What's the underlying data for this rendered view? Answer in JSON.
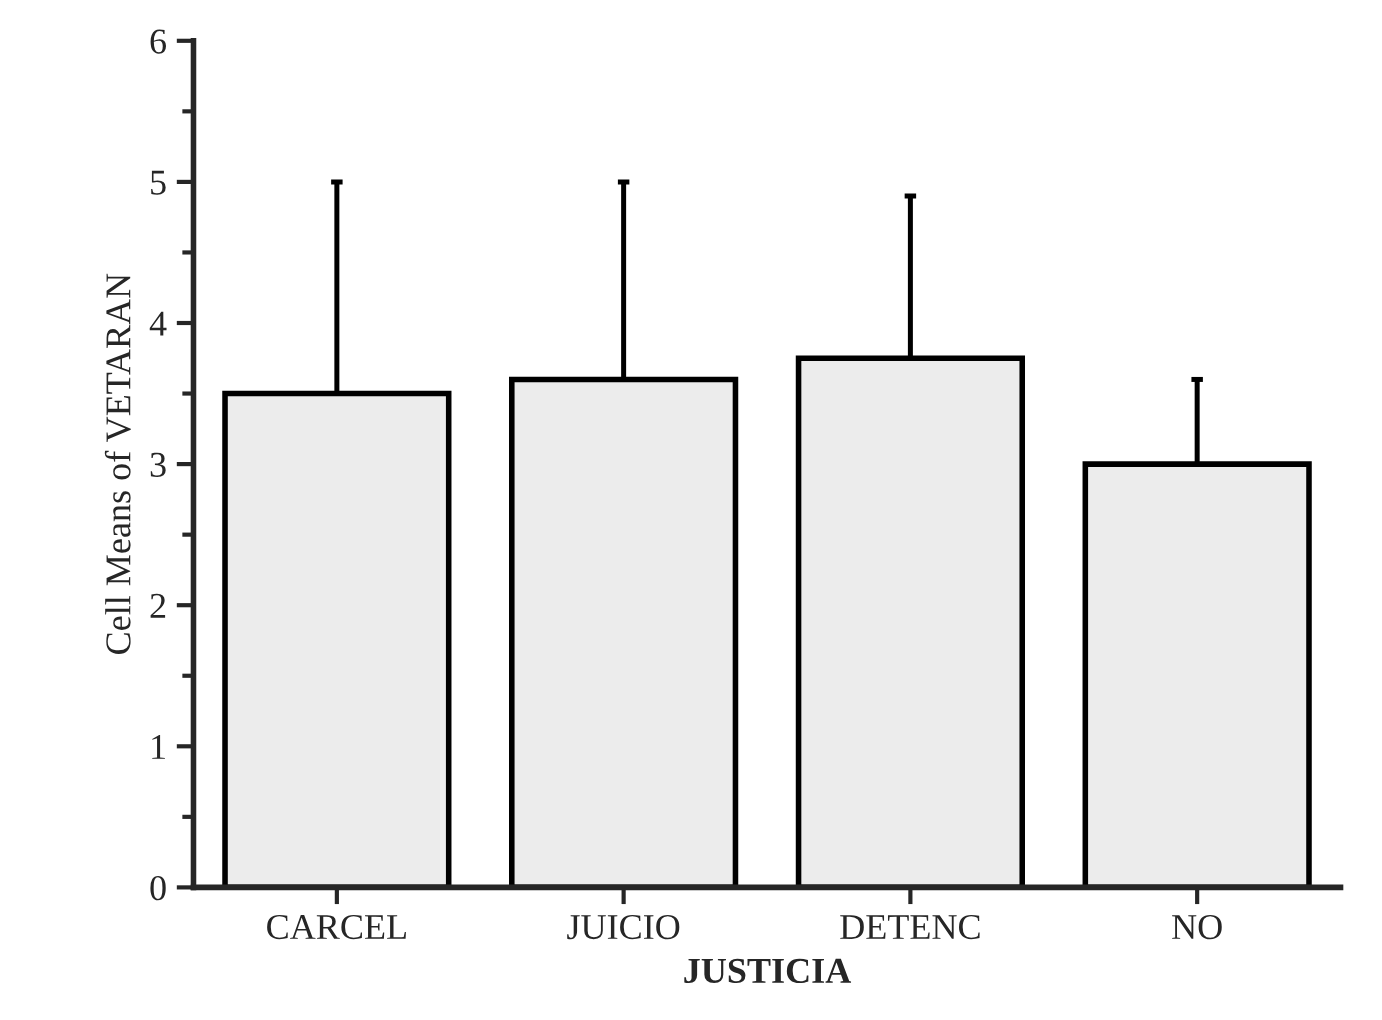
{
  "chart_data": {
    "type": "bar",
    "xlabel": "JUSTICIA",
    "ylabel": "Cell Means of VETARAN",
    "categories": [
      "CARCEL",
      "JUICIO",
      "DETENC",
      "NO"
    ],
    "values": [
      3.5,
      3.6,
      3.75,
      3.0
    ],
    "errors": [
      [
        3.5,
        5.0
      ],
      [
        3.6,
        5.0
      ],
      [
        3.75,
        4.9
      ],
      [
        3.0,
        3.6
      ]
    ],
    "color": "#ececec",
    "ylim": [
      0,
      6
    ],
    "yticks": [
      0,
      1,
      2,
      3,
      4,
      5,
      6
    ],
    "grid": false
  }
}
